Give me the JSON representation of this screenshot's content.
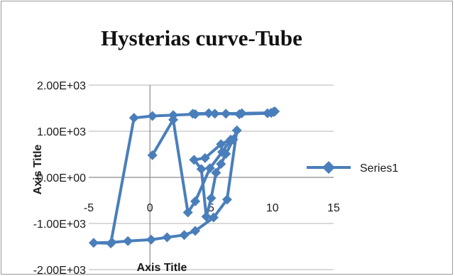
{
  "chart_data": {
    "type": "scatter",
    "title": "Hysterias curve-Tube",
    "xlabel": "Axis Title",
    "ylabel": "Axis Title",
    "xlim": [
      -5,
      15
    ],
    "ylim": [
      -2000,
      2000
    ],
    "x_ticks": [
      "-5",
      "0",
      "5",
      "10",
      "15"
    ],
    "y_ticks": [
      "2.00E+03",
      "1.00E+03",
      "0.00E+00",
      "-1.00E+03",
      "-2.00E+03"
    ],
    "grid": "horizontal",
    "legend_position": "right",
    "series": [
      {
        "name": "Series1",
        "color": "#4a7ebb",
        "marker": "diamond",
        "x": [
          3.5,
          4.8,
          6.2,
          7.3,
          9.6,
          10.1,
          10.2,
          10.1,
          9.9,
          7.5,
          5.3,
          3.7,
          1.9,
          0.2,
          -1.3,
          -3.2,
          -4.6,
          -3.1,
          -1.8,
          0.1,
          1.4,
          2.8,
          3.7,
          5.2,
          6.3,
          7.1,
          6.8,
          6.2,
          5.8,
          5.4,
          5.0,
          4.6,
          4.2,
          3.6,
          4.5,
          5.8,
          6.6,
          5.9,
          4.9,
          3.7,
          3.1,
          1.9,
          0.2
        ],
        "y": [
          1380,
          1390,
          1380,
          1370,
          1390,
          1420,
          1430,
          1420,
          1400,
          1390,
          1380,
          1370,
          1350,
          1330,
          1290,
          -1430,
          -1420,
          -1410,
          -1380,
          -1350,
          -1300,
          -1250,
          -1160,
          -870,
          -480,
          1020,
          820,
          510,
          290,
          100,
          -450,
          -850,
          180,
          380,
          420,
          720,
          820,
          550,
          200,
          -520,
          -760,
          1250,
          480
        ]
      }
    ]
  }
}
